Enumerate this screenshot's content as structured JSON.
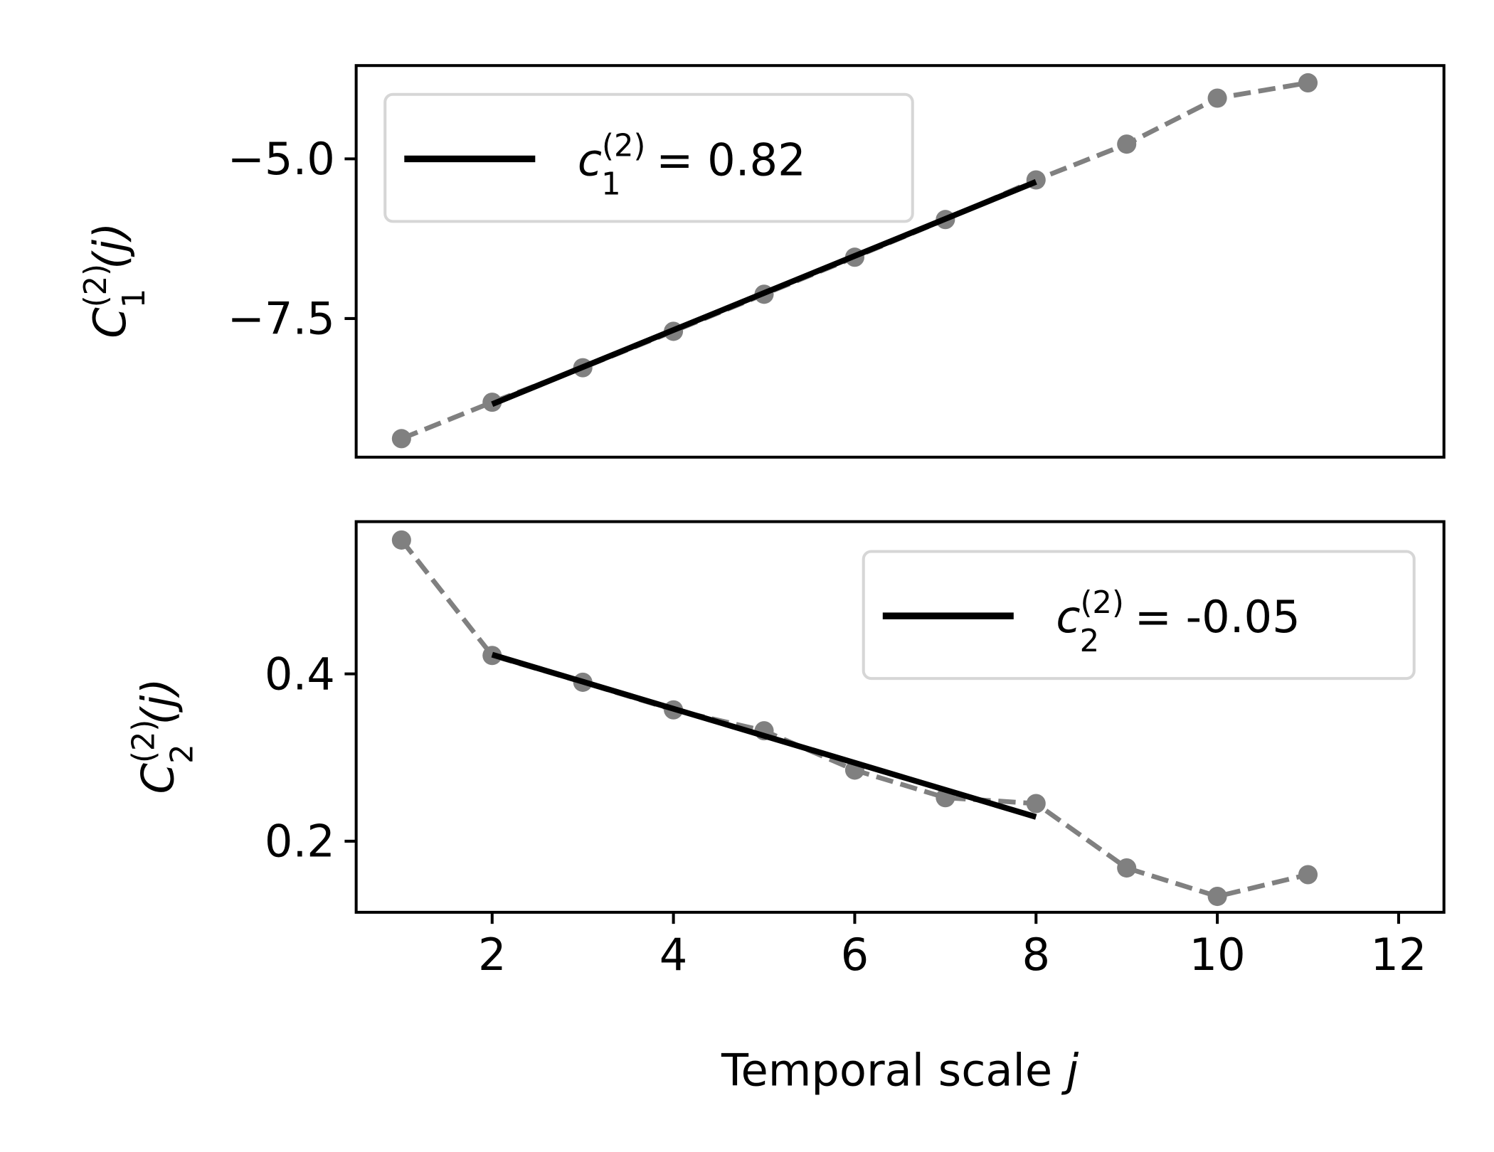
{
  "chart_data": [
    {
      "type": "line",
      "ylabel": {
        "base": "C",
        "sub": "1",
        "sup": "(2)",
        "arg": "(j)"
      },
      "xlim": [
        0.5,
        12.5
      ],
      "ylim": [
        -9.67,
        -3.54
      ],
      "yticks": [
        -5.0,
        -7.5
      ],
      "ytick_labels": [
        "−5.0",
        "−7.5"
      ],
      "grid": false,
      "legend_placement": "upper-left",
      "series": [
        {
          "style": "dashed-with-markers",
          "color": "#808080",
          "x": [
            1,
            2,
            3,
            4,
            5,
            6,
            7,
            8,
            9,
            10,
            11
          ],
          "y": [
            -9.38,
            -8.81,
            -8.27,
            -7.7,
            -7.12,
            -6.54,
            -5.95,
            -5.33,
            -4.77,
            -4.05,
            -3.81
          ]
        },
        {
          "style": "solid",
          "color": "#000000",
          "legend": {
            "base": "c",
            "sub": "1",
            "sup": "(2)",
            "value": " = 0.82"
          },
          "x": [
            2,
            8
          ],
          "y": [
            -8.84,
            -5.36
          ]
        }
      ]
    },
    {
      "type": "line",
      "ylabel": {
        "base": "C",
        "sub": "2",
        "sup": "(2)",
        "arg": "(j)"
      },
      "xlabel": {
        "text": "Temporal scale ",
        "italic": "j"
      },
      "xlim": [
        0.5,
        12.5
      ],
      "ylim": [
        0.115,
        0.582
      ],
      "xticks": [
        2,
        4,
        6,
        8,
        10,
        12
      ],
      "xtick_labels": [
        "2",
        "4",
        "6",
        "8",
        "10",
        "12"
      ],
      "yticks": [
        0.4,
        0.2
      ],
      "ytick_labels": [
        "0.4",
        "0.2"
      ],
      "grid": false,
      "legend_placement": "upper-right",
      "series": [
        {
          "style": "dashed-with-markers",
          "color": "#808080",
          "x": [
            1,
            2,
            3,
            4,
            5,
            6,
            7,
            8,
            9,
            10,
            11
          ],
          "y": [
            0.56,
            0.422,
            0.39,
            0.357,
            0.332,
            0.285,
            0.252,
            0.245,
            0.168,
            0.134,
            0.16
          ]
        },
        {
          "style": "solid",
          "color": "#000000",
          "legend": {
            "base": "c",
            "sub": "2",
            "sup": "(2)",
            "value": " = -0.05"
          },
          "x": [
            2,
            8
          ],
          "y": [
            0.423,
            0.229
          ]
        }
      ]
    }
  ]
}
